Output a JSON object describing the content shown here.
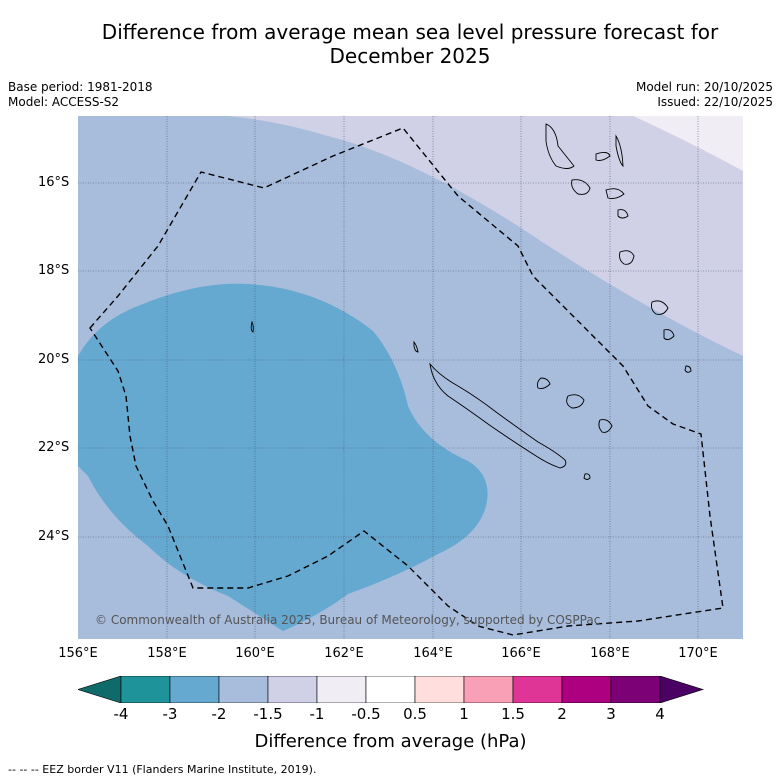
{
  "title": {
    "line1": "Difference from average mean sea level pressure forecast for",
    "line2": "December 2025"
  },
  "meta": {
    "base_period": "Base period: 1981-2018",
    "model": "Model: ACCESS-S2",
    "model_run": "Model run: 20/10/2025",
    "issued": "Issued: 22/10/2025"
  },
  "copyright": "© Commonwealth of Australia 2025, Bureau of Meteorology, supported by COSPPac",
  "axes": {
    "lat_labels": [
      "16°S",
      "18°S",
      "20°S",
      "22°S",
      "24°S"
    ],
    "lon_labels": [
      "156°E",
      "158°E",
      "160°E",
      "162°E",
      "164°E",
      "166°E",
      "168°E",
      "170°E"
    ]
  },
  "colorbar": {
    "title": "Difference from average (hPa)",
    "labels": [
      "-4",
      "-3",
      "-2",
      "-1.5",
      "-1",
      "-0.5",
      "0.5",
      "1",
      "1.5",
      "2",
      "3",
      "4"
    ],
    "colors": [
      "#0f6b6a",
      "#1e9399",
      "#65a8d0",
      "#a8bcdc",
      "#d0d1e7",
      "#f1edf5",
      "#ffffff",
      "#ffdedd",
      "#f99fb6",
      "#de3597",
      "#ad0080",
      "#7c0076",
      "#4b0063"
    ]
  },
  "map_colors": {
    "band_minus2_to_minus1_5": "#a8bcdc",
    "band_minus1_5_to_minus1": "#d0d1e7",
    "band_minus1_to_minus0_5": "#f1edf5",
    "band_minus3_to_minus2": "#65a8d0"
  },
  "footnote": "--  --  -- EEZ border V11 (Flanders Marine Institute, 2019)."
}
